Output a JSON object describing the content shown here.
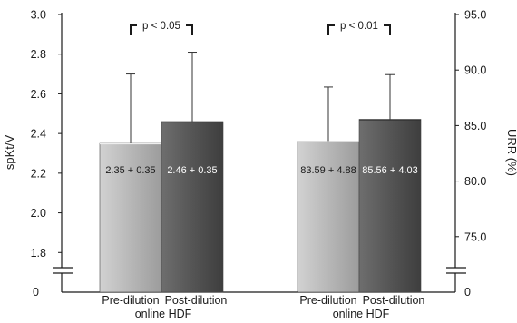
{
  "chart_data": {
    "type": "bar",
    "title": "",
    "left_axis": {
      "label": "spKt/V",
      "range": [
        1.6,
        3.0
      ],
      "ticks": [
        "3.0",
        "2.8",
        "2.6",
        "2.4",
        "2.2",
        "2.0",
        "1.8"
      ],
      "origin_label": "0",
      "axis_break": true
    },
    "right_axis": {
      "label": "URR (%)",
      "range": [
        70.0,
        95.0
      ],
      "ticks": [
        "95.0",
        "90.0",
        "85.0",
        "80.0",
        "75.0"
      ],
      "origin_label": "0",
      "axis_break": true
    },
    "categories": [
      {
        "line1": "Pre-dilution",
        "line2": "online HDF"
      },
      {
        "line1": "Post-dilution",
        "line2": "online HDF"
      }
    ],
    "groups": [
      {
        "metric": "spKt/V",
        "axis": "left",
        "bars": [
          {
            "value": 2.35,
            "sd": 0.35,
            "label": "2.35 + 0.35",
            "color": "#b3b3b3",
            "text_color": "#1a1a1a"
          },
          {
            "value": 2.46,
            "sd": 0.35,
            "label": "2.46 + 0.35",
            "color": "#595959",
            "text_color": "#ffffff"
          }
        ],
        "significance": "p < 0.05"
      },
      {
        "metric": "URR (%)",
        "axis": "right",
        "bars": [
          {
            "value": 83.59,
            "sd": 4.88,
            "label": "83.59 + 4.88",
            "color": "#b3b3b3",
            "text_color": "#1a1a1a"
          },
          {
            "value": 85.56,
            "sd": 4.03,
            "label": "85.56 + 4.03",
            "color": "#595959",
            "text_color": "#ffffff"
          }
        ],
        "significance": "p < 0.01"
      }
    ],
    "grid": false,
    "legend": "none"
  }
}
